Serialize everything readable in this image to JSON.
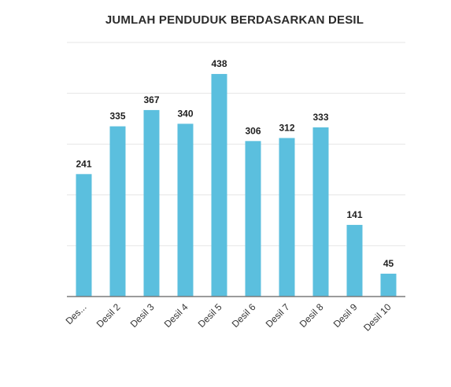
{
  "chart_data": {
    "type": "bar",
    "title": "JUMLAH PENDUDUK BERDASARKAN DESIL",
    "categories": [
      "Des...",
      "Desil 2",
      "Desil 3",
      "Desil 4",
      "Desil 5",
      "Desil 6",
      "Desil 7",
      "Desil 8",
      "Desil 9",
      "Desil 10"
    ],
    "values": [
      241,
      335,
      367,
      340,
      438,
      306,
      312,
      333,
      141,
      45
    ],
    "xlabel": "",
    "ylabel": "",
    "ylim": [
      0,
      500
    ],
    "gridlines": [
      0,
      100,
      200,
      300,
      400,
      500
    ],
    "grid": true,
    "legend": "none",
    "colors": {
      "bar": "#5bbfde",
      "grid": "#e6e6e6",
      "axis": "#7a7a7a"
    }
  }
}
